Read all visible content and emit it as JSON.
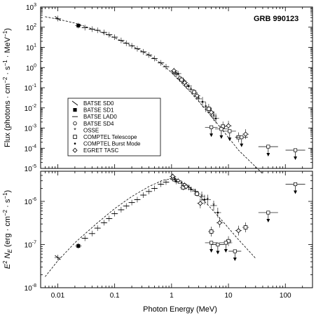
{
  "chart_data": {
    "type": "scatter",
    "title": "GRB 990123",
    "xlabel": "Photon Energy (MeV)",
    "xscale": "log",
    "xlim": [
      0.005,
      300
    ],
    "x_ticks": [
      0.01,
      0.1,
      1,
      10,
      100
    ],
    "x_tick_labels": [
      "0.01",
      "0.1",
      "1",
      "10",
      "100"
    ],
    "panels": [
      {
        "id": "flux",
        "ylabel": "Flux (photons · cm⁻² · s⁻¹ · MeV⁻¹)",
        "ylabel_parts": {
          "main": "Flux (photons · cm",
          "e1": "−2",
          "mid": " · s",
          "e2": "−1",
          "tail": " · MeV",
          "e3": "−1",
          "close": ")"
        },
        "yscale": "log",
        "ylim": [
          1e-05,
          1000
        ],
        "y_ticks": [
          1e-05,
          0.0001,
          0.001,
          0.01,
          0.1,
          1,
          10,
          100,
          1000
        ],
        "y_tick_labels": [
          {
            "base": "10",
            "exp": "-5"
          },
          {
            "base": "10",
            "exp": "-4"
          },
          {
            "base": "10",
            "exp": "-3"
          },
          {
            "base": "10",
            "exp": "-2"
          },
          {
            "base": "10",
            "exp": "-1"
          },
          {
            "base": "10",
            "exp": "0"
          },
          {
            "base": "10",
            "exp": "1"
          },
          {
            "base": "10",
            "exp": "2"
          },
          {
            "base": "10",
            "exp": "3"
          }
        ],
        "model_curve": [
          [
            0.006,
            330
          ],
          [
            0.01,
            250
          ],
          [
            0.02,
            160
          ],
          [
            0.05,
            68
          ],
          [
            0.1,
            30
          ],
          [
            0.2,
            12
          ],
          [
            0.4,
            4.2
          ],
          [
            0.7,
            1.4
          ],
          [
            1,
            0.55
          ],
          [
            2,
            0.075
          ],
          [
            3,
            0.021
          ],
          [
            5,
            0.0038
          ],
          [
            8,
            0.00075
          ],
          [
            15,
            8e-05
          ],
          [
            30,
            1.2e-05
          ],
          [
            40,
            5.5e-06
          ]
        ],
        "points": [
          {
            "series": "BATSE SD0",
            "x": 0.01,
            "y": 270
          },
          {
            "series": "BATSE SD1",
            "x": 0.023,
            "y": 120
          },
          {
            "series": "BATSE LAD0",
            "x": 0.03,
            "y": 95
          },
          {
            "series": "BATSE LAD0",
            "x": 0.04,
            "y": 80
          },
          {
            "series": "BATSE LAD0",
            "x": 0.05,
            "y": 70
          },
          {
            "series": "BATSE LAD0",
            "x": 0.065,
            "y": 55
          },
          {
            "series": "BATSE LAD0",
            "x": 0.08,
            "y": 42
          },
          {
            "series": "BATSE LAD0",
            "x": 0.1,
            "y": 32
          },
          {
            "series": "BATSE LAD0",
            "x": 0.13,
            "y": 22
          },
          {
            "series": "BATSE LAD0",
            "x": 0.16,
            "y": 16
          },
          {
            "series": "BATSE LAD0",
            "x": 0.2,
            "y": 12
          },
          {
            "series": "BATSE LAD0",
            "x": 0.25,
            "y": 8.5
          },
          {
            "series": "BATSE LAD0",
            "x": 0.32,
            "y": 6
          },
          {
            "series": "BATSE LAD0",
            "x": 0.4,
            "y": 4.2
          },
          {
            "series": "BATSE LAD0",
            "x": 0.5,
            "y": 2.8
          },
          {
            "series": "BATSE LAD0",
            "x": 0.65,
            "y": 1.7
          },
          {
            "series": "BATSE LAD0",
            "x": 0.8,
            "y": 1.1
          },
          {
            "series": "BATSE SD4",
            "x": 1.1,
            "y": 0.6
          },
          {
            "series": "BATSE SD4",
            "x": 1.4,
            "y": 0.3
          },
          {
            "series": "BATSE SD4",
            "x": 1.8,
            "y": 0.13
          },
          {
            "series": "OSSE",
            "x": 1.2,
            "y": 0.45
          },
          {
            "series": "OSSE",
            "x": 1.6,
            "y": 0.22
          },
          {
            "series": "OSSE",
            "x": 2.2,
            "y": 0.08
          },
          {
            "series": "OSSE",
            "x": 3,
            "y": 0.028
          },
          {
            "series": "OSSE",
            "x": 4,
            "y": 0.011
          },
          {
            "series": "OSSE",
            "x": 5.5,
            "y": 0.004
          },
          {
            "series": "COMPTEL Telescope",
            "x": 1.5,
            "y": 0.25
          },
          {
            "series": "COMPTEL Telescope",
            "x": 2.5,
            "y": 0.06
          },
          {
            "series": "COMPTEL Telescope",
            "x": 4.5,
            "y": 0.009
          },
          {
            "series": "COMPTEL Telescope",
            "x": 8,
            "y": 0.0012
          },
          {
            "series": "COMPTEL Telescope",
            "x": 15,
            "y": 0.00035
          },
          {
            "series": "COMPTEL Burst Mode",
            "x": 1.3,
            "y": 0.5
          },
          {
            "series": "COMPTEL Burst Mode",
            "x": 2,
            "y": 0.12
          },
          {
            "series": "COMPTEL Burst Mode",
            "x": 3.5,
            "y": 0.02
          },
          {
            "series": "COMPTEL Burst Mode",
            "x": 6,
            "y": 0.003
          },
          {
            "series": "EGRET TASC",
            "x": 1.1,
            "y": 0.7
          },
          {
            "series": "EGRET TASC",
            "x": 1.7,
            "y": 0.18
          },
          {
            "series": "EGRET TASC",
            "x": 2.8,
            "y": 0.04
          },
          {
            "series": "EGRET TASC",
            "x": 5,
            "y": 0.006
          },
          {
            "series": "EGRET TASC",
            "x": 10,
            "y": 0.0013
          },
          {
            "series": "EGRET TASC",
            "x": 20,
            "y": 0.0005
          }
        ],
        "upper_limits": [
          {
            "x": 5,
            "y": 0.0011
          },
          {
            "x": 7.5,
            "y": 0.0009
          },
          {
            "x": 10.5,
            "y": 0.0007
          },
          {
            "x": 17,
            "y": 0.00035
          },
          {
            "x": 50,
            "y": 0.00012
          },
          {
            "x": 150,
            "y": 8e-05
          }
        ]
      },
      {
        "id": "energy",
        "ylabel_parts": {
          "pre": "E",
          "e1": "2",
          "mid": " N",
          "sub": "E",
          "tail": " (erg · cm",
          "e2": "−2",
          "tail2": " · s",
          "e3": "−1",
          "close": ")"
        },
        "yscale": "log",
        "ylim": [
          1e-08,
          5e-06
        ],
        "y_ticks": [
          1e-08,
          1e-07,
          1e-06
        ],
        "y_tick_labels": [
          {
            "base": "10",
            "exp": "-8"
          },
          {
            "base": "10",
            "exp": "-7"
          },
          {
            "base": "10",
            "exp": "-6"
          }
        ],
        "model_curve": [
          [
            0.006,
            1.8e-08
          ],
          [
            0.01,
            4.2e-08
          ],
          [
            0.02,
            1.1e-07
          ],
          [
            0.05,
            3.2e-07
          ],
          [
            0.1,
            6.8e-07
          ],
          [
            0.2,
            1.3e-06
          ],
          [
            0.4,
            2.2e-06
          ],
          [
            0.7,
            3.1e-06
          ],
          [
            1,
            3.3e-06
          ],
          [
            1.5,
            2.8e-06
          ],
          [
            2,
            2.2e-06
          ],
          [
            3,
            1.4e-06
          ],
          [
            5,
            6.8e-07
          ],
          [
            8,
            3.4e-07
          ],
          [
            15,
            1.3e-07
          ],
          [
            30,
            4.8e-08
          ]
        ],
        "points": [
          {
            "series": "BATSE SD0",
            "x": 0.01,
            "y": 5e-08
          },
          {
            "series": "BATSE SD1",
            "x": 0.023,
            "y": 9.3e-08
          },
          {
            "series": "BATSE LAD0",
            "x": 0.03,
            "y": 1.4e-07
          },
          {
            "series": "BATSE LAD0",
            "x": 0.04,
            "y": 1.8e-07
          },
          {
            "series": "BATSE LAD0",
            "x": 0.05,
            "y": 2.4e-07
          },
          {
            "series": "BATSE LAD0",
            "x": 0.065,
            "y": 3.2e-07
          },
          {
            "series": "BATSE LAD0",
            "x": 0.08,
            "y": 4e-07
          },
          {
            "series": "BATSE LAD0",
            "x": 0.1,
            "y": 5.2e-07
          },
          {
            "series": "BATSE LAD0",
            "x": 0.13,
            "y": 6.4e-07
          },
          {
            "series": "BATSE LAD0",
            "x": 0.16,
            "y": 7.8e-07
          },
          {
            "series": "BATSE LAD0",
            "x": 0.2,
            "y": 9.4e-07
          },
          {
            "series": "BATSE LAD0",
            "x": 0.25,
            "y": 1.1e-06
          },
          {
            "series": "BATSE LAD0",
            "x": 0.32,
            "y": 1.4e-06
          },
          {
            "series": "BATSE LAD0",
            "x": 0.4,
            "y": 1.7e-06
          },
          {
            "series": "BATSE LAD0",
            "x": 0.5,
            "y": 2e-06
          },
          {
            "series": "BATSE LAD0",
            "x": 0.65,
            "y": 2.5e-06
          },
          {
            "series": "BATSE LAD0",
            "x": 0.8,
            "y": 2.8e-06
          },
          {
            "series": "BATSE SD4",
            "x": 1.05,
            "y": 3.4e-06
          },
          {
            "series": "BATSE SD4",
            "x": 1.3,
            "y": 3e-06
          },
          {
            "series": "BATSE SD4",
            "x": 1.7,
            "y": 2.4e-06
          },
          {
            "series": "OSSE",
            "x": 1.15,
            "y": 3.2e-06
          },
          {
            "series": "OSSE",
            "x": 1.5,
            "y": 2.6e-06
          },
          {
            "series": "OSSE",
            "x": 2,
            "y": 2.1e-06
          },
          {
            "series": "OSSE",
            "x": 2.6,
            "y": 1.7e-06
          },
          {
            "series": "OSSE",
            "x": 3.4,
            "y": 1.3e-06
          },
          {
            "series": "OSSE",
            "x": 4.3,
            "y": 1.1e-06
          },
          {
            "series": "OSSE",
            "x": 5.5,
            "y": 8e-07
          },
          {
            "series": "COMPTEL Telescope",
            "x": 1.6,
            "y": 2.1e-06
          },
          {
            "series": "COMPTEL Telescope",
            "x": 2.8,
            "y": 1.5e-06
          },
          {
            "series": "COMPTEL Telescope",
            "x": 5,
            "y": 2e-07
          },
          {
            "series": "COMPTEL Telescope",
            "x": 10,
            "y": 1.2e-07
          },
          {
            "series": "COMPTEL Telescope",
            "x": 20,
            "y": 2.5e-07
          },
          {
            "series": "COMPTEL Burst Mode",
            "x": 1.2,
            "y": 2.9e-06
          },
          {
            "series": "COMPTEL Burst Mode",
            "x": 2.2,
            "y": 1.9e-06
          },
          {
            "series": "COMPTEL Burst Mode",
            "x": 3.8,
            "y": 1.1e-06
          },
          {
            "series": "COMPTEL Burst Mode",
            "x": 6.5,
            "y": 5.5e-07
          },
          {
            "series": "EGRET TASC",
            "x": 1.05,
            "y": 3.8e-06
          },
          {
            "series": "EGRET TASC",
            "x": 1.8,
            "y": 2.2e-06
          },
          {
            "series": "EGRET TASC",
            "x": 3.2,
            "y": 9e-07
          },
          {
            "series": "EGRET TASC",
            "x": 7,
            "y": 3.2e-07
          },
          {
            "series": "EGRET TASC",
            "x": 15,
            "y": 2.1e-07
          }
        ],
        "upper_limits": [
          {
            "x": 5,
            "y": 1.1e-07
          },
          {
            "x": 6.5,
            "y": 1e-07
          },
          {
            "x": 9,
            "y": 1.1e-07
          },
          {
            "x": 13,
            "y": 7e-08
          },
          {
            "x": 50,
            "y": 5.5e-07
          },
          {
            "x": 150,
            "y": 2.5e-06
          }
        ]
      }
    ],
    "legend": {
      "placement": "left-middle of upper panel",
      "entries": [
        {
          "label": "BATSE SD0",
          "marker": "backslash"
        },
        {
          "label": "BATSE SD1",
          "marker": "filled-square"
        },
        {
          "label": "BATSE LAD0",
          "marker": "dash"
        },
        {
          "label": "BATSE SD4",
          "marker": "open-circle"
        },
        {
          "label": "OSSE",
          "marker": "star"
        },
        {
          "label": "COMPTEL Telescope",
          "marker": "open-square"
        },
        {
          "label": "COMPTEL Burst Mode",
          "marker": "dot"
        },
        {
          "label": "EGRET TASC",
          "marker": "open-diamond"
        }
      ]
    },
    "grid": false,
    "colors": {
      "ink": "#000000",
      "background": "#ffffff"
    }
  }
}
